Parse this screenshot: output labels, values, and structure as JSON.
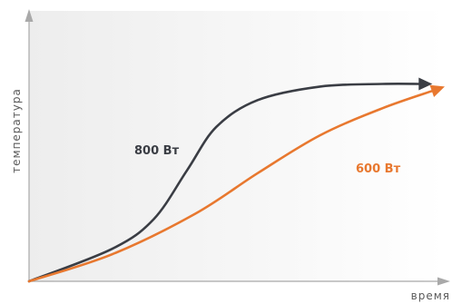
{
  "chart_data": {
    "type": "line",
    "title": "",
    "xlabel": "время",
    "ylabel": "температура",
    "grid": false,
    "legend": "inline labels",
    "series": [
      {
        "name": "800 Вт",
        "color": "#3a3d44",
        "points": [
          [
            0,
            0
          ],
          [
            0.2,
            0.12
          ],
          [
            0.3,
            0.23
          ],
          [
            0.38,
            0.41
          ],
          [
            0.45,
            0.57
          ],
          [
            0.55,
            0.67
          ],
          [
            0.7,
            0.72
          ],
          [
            0.85,
            0.73
          ],
          [
            0.97,
            0.73
          ]
        ]
      },
      {
        "name": "600 Вт",
        "color": "#e8782f",
        "points": [
          [
            0,
            0
          ],
          [
            0.2,
            0.1
          ],
          [
            0.4,
            0.25
          ],
          [
            0.55,
            0.4
          ],
          [
            0.7,
            0.54
          ],
          [
            0.85,
            0.64
          ],
          [
            1.0,
            0.72
          ]
        ]
      }
    ]
  }
}
